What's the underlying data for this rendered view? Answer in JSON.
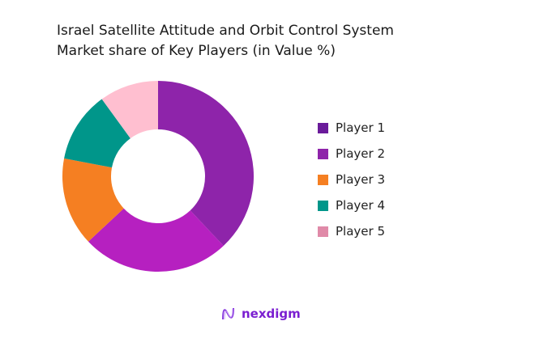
{
  "chart_data": {
    "type": "pie",
    "donut": true,
    "title": "Israel Satellite Attitude and Orbit Control System Market share of Key Players (in Value %)",
    "title_lines": [
      "Israel Satellite Attitude and Orbit Control System",
      "Market share of Key Players (in Value %)"
    ],
    "categories": [
      "Player 1",
      "Player 2",
      "Player 3",
      "Player 4",
      "Player 5"
    ],
    "values": [
      38,
      25,
      15,
      12,
      10
    ],
    "slice_colors": [
      "#8E24AA",
      "#B620C0",
      "#F57F22",
      "#00968A",
      "#FFBFD0"
    ],
    "legend_colors": [
      "#6A1B9A",
      "#8E24AA",
      "#F57F22",
      "#00968A",
      "#E08AA8"
    ],
    "legend_placement": "right"
  },
  "brand": {
    "name": "nexdigm",
    "color": "#7B1FD1"
  }
}
